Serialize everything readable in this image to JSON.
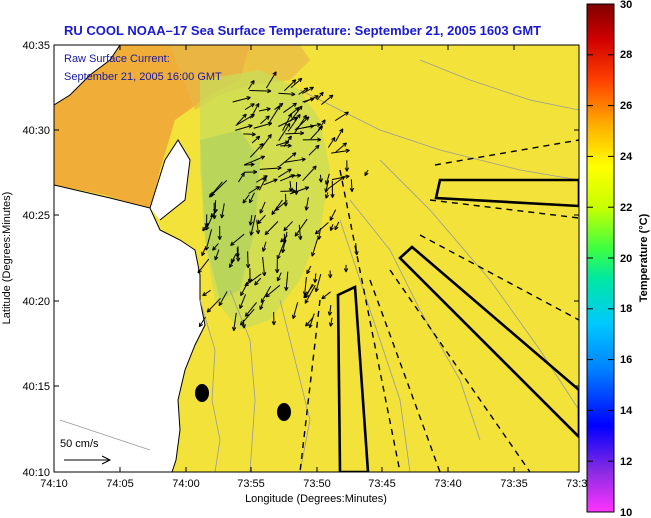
{
  "title": "RU COOL  NOAA–17  Sea Surface Temperature:  September 21, 2005 1603 GMT",
  "legend": {
    "line1": "Raw Surface Current:",
    "line2": "September 21, 2005 16:00 GMT",
    "scale_label": "50 cm/s"
  },
  "axes": {
    "xlabel": "Longitude (Degrees:Minutes)",
    "ylabel": "Latitude (Degrees:Minutes)",
    "xticks": [
      "74:10",
      "74:05",
      "74:00",
      "73:55",
      "73:50",
      "73:45",
      "73:40",
      "73:35",
      "73:3"
    ],
    "yticks": [
      "40:35",
      "40:30",
      "40:25",
      "40:20",
      "40:15",
      "40:10"
    ]
  },
  "colorbar": {
    "label": "Temperature (°C)",
    "ticks": [
      "30",
      "28",
      "26",
      "24",
      "22",
      "20",
      "18",
      "16",
      "14",
      "12",
      "10"
    ],
    "colors": [
      "#ff33ff",
      "#8a2be2",
      "#0000ff",
      "#0080ff",
      "#00d0ff",
      "#00ff80",
      "#80ff00",
      "#ffff00",
      "#ffb000",
      "#ff5000",
      "#d00000",
      "#8b0000"
    ]
  },
  "map": {
    "ocean_color": "#f2e23a",
    "land_color": "#ffffff",
    "warm_patch_color": "#f0a030",
    "cool_plume_color": "#b8d860",
    "buoy_color": "#000000"
  }
}
